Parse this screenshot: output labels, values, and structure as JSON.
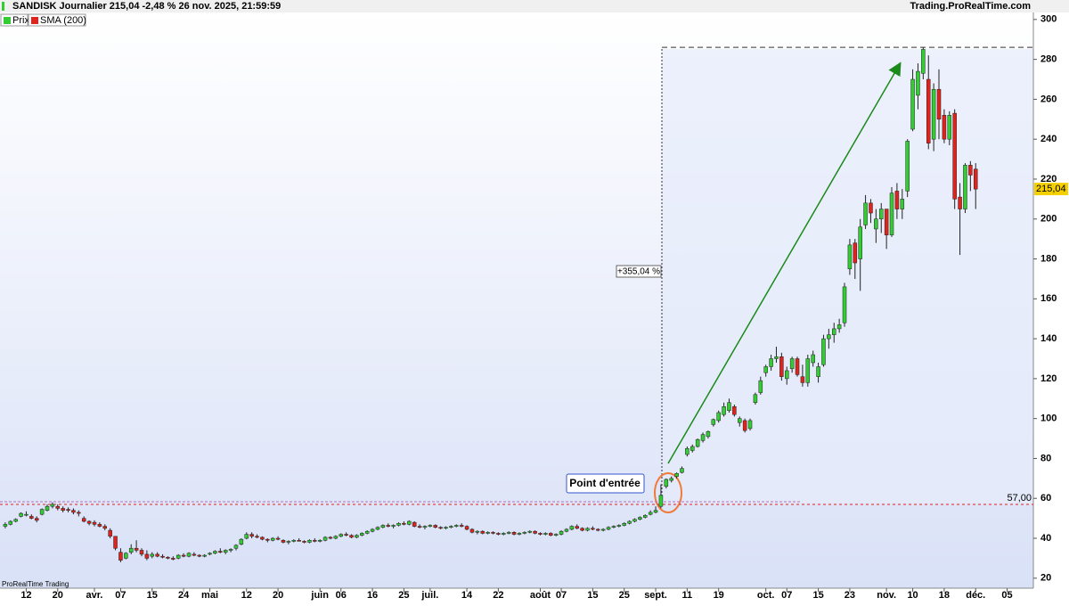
{
  "chart_data": {
    "type": "candlestick",
    "title": "SANDISK Journalier 215,04 -2,48 % 26 nov. 2025, 21:59:59",
    "source": "Trading.ProRealTime.com",
    "watermark": "ProRealTime Trading",
    "series": [
      {
        "name": "Prix",
        "color": "#33cc33"
      },
      {
        "name": "SMA (200)",
        "color": "#e0231c"
      }
    ],
    "up_color": "#33cc33",
    "down_color": "#e0231c",
    "entry_label": "Point d'entrée",
    "gain": {
      "value": 355.04,
      "label": "+355,04 %"
    },
    "level": {
      "value": 57,
      "label": "57,00"
    },
    "last_price": {
      "value": 215.04,
      "label": "215,04"
    },
    "xlim": [
      -1,
      196
    ],
    "ylim": [
      15,
      303.5
    ],
    "yticks": [
      20,
      40,
      60,
      80,
      100,
      120,
      140,
      160,
      180,
      200,
      220,
      240,
      260,
      280,
      300
    ],
    "xticks": [
      {
        "value": 4,
        "label": "12"
      },
      {
        "value": 10,
        "label": "20"
      },
      {
        "value": 17,
        "label": "avr."
      },
      {
        "value": 22,
        "label": "07"
      },
      {
        "value": 28,
        "label": "15"
      },
      {
        "value": 34,
        "label": "24"
      },
      {
        "value": 39,
        "label": "mai"
      },
      {
        "value": 46,
        "label": "12"
      },
      {
        "value": 52,
        "label": "20"
      },
      {
        "value": 60,
        "label": "juin"
      },
      {
        "value": 64,
        "label": "06"
      },
      {
        "value": 70,
        "label": "16"
      },
      {
        "value": 76,
        "label": "25"
      },
      {
        "value": 81,
        "label": "juil."
      },
      {
        "value": 88,
        "label": "14"
      },
      {
        "value": 94,
        "label": "22"
      },
      {
        "value": 102,
        "label": "août"
      },
      {
        "value": 106,
        "label": "07"
      },
      {
        "value": 112,
        "label": "15"
      },
      {
        "value": 118,
        "label": "25"
      },
      {
        "value": 124,
        "label": "sept."
      },
      {
        "value": 130,
        "label": "11"
      },
      {
        "value": 136,
        "label": "19"
      },
      {
        "value": 145,
        "label": "oct."
      },
      {
        "value": 149,
        "label": "07"
      },
      {
        "value": 155,
        "label": "15"
      },
      {
        "value": 161,
        "label": "23"
      },
      {
        "value": 168,
        "label": "nov."
      },
      {
        "value": 173,
        "label": "10"
      },
      {
        "value": 179,
        "label": "18"
      },
      {
        "value": 185,
        "label": "déc."
      },
      {
        "value": 191,
        "label": "05"
      }
    ],
    "candles": [
      [
        46,
        48,
        45,
        47
      ],
      [
        47,
        49,
        46.5,
        48.5
      ],
      [
        48.5,
        50,
        48,
        49.5
      ],
      [
        51,
        53,
        50.5,
        52.5
      ],
      [
        52,
        53.5,
        51,
        52
      ],
      [
        51,
        52,
        49.5,
        50
      ],
      [
        50,
        51,
        48,
        49
      ],
      [
        52,
        55,
        51.5,
        54.5
      ],
      [
        54,
        57,
        53.5,
        56
      ],
      [
        56,
        58,
        55,
        57
      ],
      [
        56,
        57,
        54,
        55
      ],
      [
        55,
        56,
        53,
        54
      ],
      [
        54.5,
        55.5,
        53,
        54
      ],
      [
        54,
        55,
        52,
        53
      ],
      [
        53,
        54,
        51,
        52.5
      ],
      [
        50,
        51,
        48,
        48.5
      ],
      [
        48.5,
        49,
        46.5,
        47.5
      ],
      [
        48,
        49,
        46,
        47
      ],
      [
        47,
        48,
        45.5,
        46
      ],
      [
        46,
        47,
        44,
        45
      ],
      [
        44,
        45,
        40,
        41
      ],
      [
        41,
        41,
        34,
        35
      ],
      [
        33,
        35,
        28,
        29
      ],
      [
        30,
        33,
        29.5,
        32.5
      ],
      [
        33,
        37,
        32,
        35
      ],
      [
        35,
        39,
        33,
        34
      ],
      [
        34,
        35,
        31,
        32
      ],
      [
        32,
        34,
        29,
        30
      ],
      [
        31,
        33,
        30,
        32
      ],
      [
        32,
        33,
        30.5,
        31
      ],
      [
        31,
        32,
        30,
        30.5
      ],
      [
        30.5,
        31,
        29.5,
        30
      ],
      [
        30,
        31,
        29,
        29.5
      ],
      [
        30,
        32,
        29.5,
        31.5
      ],
      [
        31.5,
        32.5,
        30.5,
        31
      ],
      [
        31,
        33,
        30.5,
        32.5
      ],
      [
        32,
        33,
        31,
        31.5
      ],
      [
        31.5,
        32,
        30.5,
        31
      ],
      [
        31,
        32,
        30.5,
        31.5
      ],
      [
        32,
        33,
        31.5,
        32.5
      ],
      [
        32.5,
        34,
        32,
        33.5
      ],
      [
        33.5,
        35,
        32.5,
        33
      ],
      [
        33,
        34.5,
        32,
        34
      ],
      [
        34,
        35,
        33,
        34.5
      ],
      [
        35,
        37,
        34,
        36.5
      ],
      [
        37,
        40,
        36.5,
        39.5
      ],
      [
        40,
        43,
        39.5,
        42
      ],
      [
        42,
        43,
        40,
        41
      ],
      [
        41,
        42,
        40,
        40.5
      ],
      [
        40.5,
        41,
        39,
        39.5
      ],
      [
        39.5,
        40,
        38,
        39
      ],
      [
        39,
        40.5,
        38.5,
        40
      ],
      [
        40,
        41,
        39,
        39.5
      ],
      [
        39,
        39.5,
        37.5,
        38
      ],
      [
        38,
        39,
        37,
        38.5
      ],
      [
        38.5,
        39.5,
        38,
        39
      ],
      [
        39,
        40,
        38.5,
        38.5
      ],
      [
        38.5,
        39,
        37.5,
        38
      ],
      [
        38,
        39.5,
        37.5,
        39
      ],
      [
        39,
        40,
        38,
        38.5
      ],
      [
        38.5,
        39.5,
        38,
        39
      ],
      [
        39,
        41,
        38.5,
        40.5
      ],
      [
        40.5,
        41,
        39.5,
        40
      ],
      [
        40,
        41.5,
        39.5,
        41
      ],
      [
        41,
        42.5,
        40.5,
        42
      ],
      [
        42,
        43,
        41,
        41.5
      ],
      [
        41.5,
        42,
        40,
        40.5
      ],
      [
        40.5,
        42,
        40,
        41.5
      ],
      [
        41.5,
        43,
        41,
        42.5
      ],
      [
        42.5,
        44,
        42,
        43.5
      ],
      [
        43.5,
        45,
        43,
        44.5
      ],
      [
        44.5,
        46,
        44,
        45.5
      ],
      [
        45.5,
        47,
        45,
        46.5
      ],
      [
        46.5,
        47.5,
        45.5,
        46
      ],
      [
        46,
        47,
        45,
        46.5
      ],
      [
        46.5,
        48,
        46,
        47.5
      ],
      [
        47.5,
        48.5,
        46.5,
        47
      ],
      [
        47,
        49,
        46.5,
        48.5
      ],
      [
        48,
        48.5,
        45.5,
        46
      ],
      [
        46,
        47,
        45,
        45.5
      ],
      [
        45.5,
        46.5,
        44.5,
        46
      ],
      [
        46,
        47,
        45.5,
        46.5
      ],
      [
        46.5,
        47,
        45,
        45.5
      ],
      [
        45.5,
        46,
        44.5,
        45
      ],
      [
        45,
        46,
        44.5,
        45.5
      ],
      [
        45.5,
        46.5,
        45,
        46
      ],
      [
        46,
        47,
        45.5,
        46.5
      ],
      [
        46.5,
        47.5,
        45.5,
        46
      ],
      [
        46,
        46.5,
        44,
        44.5
      ],
      [
        44.5,
        45,
        42.5,
        43
      ],
      [
        43,
        44,
        42,
        43.5
      ],
      [
        43.5,
        44,
        42,
        42.5
      ],
      [
        42.5,
        43.5,
        42,
        43
      ],
      [
        43,
        43.5,
        42,
        42.5
      ],
      [
        42.5,
        43,
        41.5,
        42
      ],
      [
        42,
        43,
        41.5,
        42.5
      ],
      [
        42.5,
        43.5,
        42,
        43
      ],
      [
        43,
        43.5,
        41.5,
        42
      ],
      [
        42,
        43,
        41.5,
        42.5
      ],
      [
        42.5,
        43.5,
        42,
        43
      ],
      [
        43,
        44,
        42.5,
        43.5
      ],
      [
        43.5,
        44,
        42,
        42.5
      ],
      [
        42.5,
        43,
        41.5,
        42
      ],
      [
        42,
        43,
        41.5,
        42.5
      ],
      [
        42.5,
        43,
        41,
        41.5
      ],
      [
        41.5,
        42.5,
        41,
        42
      ],
      [
        42,
        44,
        41.5,
        43.5
      ],
      [
        43.5,
        45,
        43,
        44.5
      ],
      [
        44.5,
        46.5,
        44,
        46
      ],
      [
        46,
        47,
        44.5,
        45
      ],
      [
        45,
        45.5,
        43.5,
        44
      ],
      [
        44,
        45.5,
        43.5,
        45
      ],
      [
        45,
        46,
        44,
        44.5
      ],
      [
        44.5,
        45,
        43.5,
        44
      ],
      [
        44,
        45,
        43.5,
        44.5
      ],
      [
        44.5,
        46,
        44,
        45.5
      ],
      [
        45.5,
        46.5,
        45,
        46
      ],
      [
        46,
        47,
        45.5,
        46.5
      ],
      [
        46.5,
        48,
        46,
        47.5
      ],
      [
        47.5,
        49,
        47,
        48.5
      ],
      [
        48.5,
        50,
        48,
        49.5
      ],
      [
        49.5,
        51,
        49,
        50.5
      ],
      [
        50.5,
        52,
        50,
        51.5
      ],
      [
        52,
        54,
        51.5,
        53
      ],
      [
        53,
        56,
        52.5,
        54
      ],
      [
        56,
        67,
        55,
        61.5
      ],
      [
        66,
        70,
        65,
        69.5
      ],
      [
        69,
        71,
        68,
        70
      ],
      [
        71,
        73,
        70,
        72.5
      ],
      [
        73,
        76,
        72.5,
        75
      ],
      [
        82,
        86,
        81,
        85
      ],
      [
        84,
        87,
        83,
        86
      ],
      [
        86,
        90,
        85.5,
        89.5
      ],
      [
        89,
        93,
        88,
        92
      ],
      [
        91,
        94,
        90,
        93.5
      ],
      [
        97,
        100,
        96,
        99.5
      ],
      [
        99,
        104,
        98,
        103
      ],
      [
        102,
        108,
        101,
        106
      ],
      [
        104,
        110,
        103,
        108
      ],
      [
        106,
        107,
        101,
        102
      ],
      [
        98,
        101,
        96,
        100
      ],
      [
        99,
        100,
        93,
        94
      ],
      [
        95,
        100,
        94,
        99
      ],
      [
        108,
        113,
        107,
        112
      ],
      [
        113,
        121,
        112,
        119
      ],
      [
        123,
        127,
        121,
        126
      ],
      [
        126,
        132,
        124,
        130
      ],
      [
        130,
        136,
        128,
        131
      ],
      [
        131,
        133,
        119,
        121
      ],
      [
        120,
        126,
        117,
        124
      ],
      [
        125,
        131,
        123,
        130
      ],
      [
        130,
        131,
        121,
        122
      ],
      [
        121,
        127,
        116,
        118
      ],
      [
        118,
        132,
        116,
        130
      ],
      [
        128,
        134,
        126,
        132
      ],
      [
        121,
        128,
        118,
        126
      ],
      [
        127,
        142,
        126,
        140
      ],
      [
        140,
        145,
        135,
        142
      ],
      [
        142,
        148,
        138,
        145
      ],
      [
        145,
        150,
        143,
        147
      ],
      [
        148,
        168,
        146,
        166
      ],
      [
        175,
        190,
        172,
        187
      ],
      [
        188,
        190,
        170,
        178
      ],
      [
        180,
        200,
        164,
        196
      ],
      [
        197,
        212,
        195,
        208
      ],
      [
        208,
        210,
        198,
        203
      ],
      [
        195,
        205,
        188,
        200
      ],
      [
        200,
        208,
        193,
        205
      ],
      [
        205,
        205,
        185,
        192
      ],
      [
        192,
        216,
        191,
        213
      ],
      [
        214,
        218,
        200,
        205
      ],
      [
        205,
        215,
        200,
        210
      ],
      [
        214,
        240,
        211,
        239
      ],
      [
        245,
        275,
        244,
        270
      ],
      [
        262,
        278,
        255,
        274
      ],
      [
        273,
        286,
        270,
        285
      ],
      [
        270,
        282,
        235,
        238
      ],
      [
        240,
        268,
        234,
        265
      ],
      [
        265,
        275,
        240,
        250
      ],
      [
        252,
        255,
        238,
        240
      ],
      [
        240,
        254,
        237,
        252
      ],
      [
        253,
        255,
        205,
        210
      ],
      [
        211,
        218,
        182,
        205
      ],
      [
        205,
        228,
        203,
        227
      ],
      [
        227,
        229,
        214,
        222
      ],
      [
        225,
        228,
        205,
        215
      ]
    ]
  }
}
